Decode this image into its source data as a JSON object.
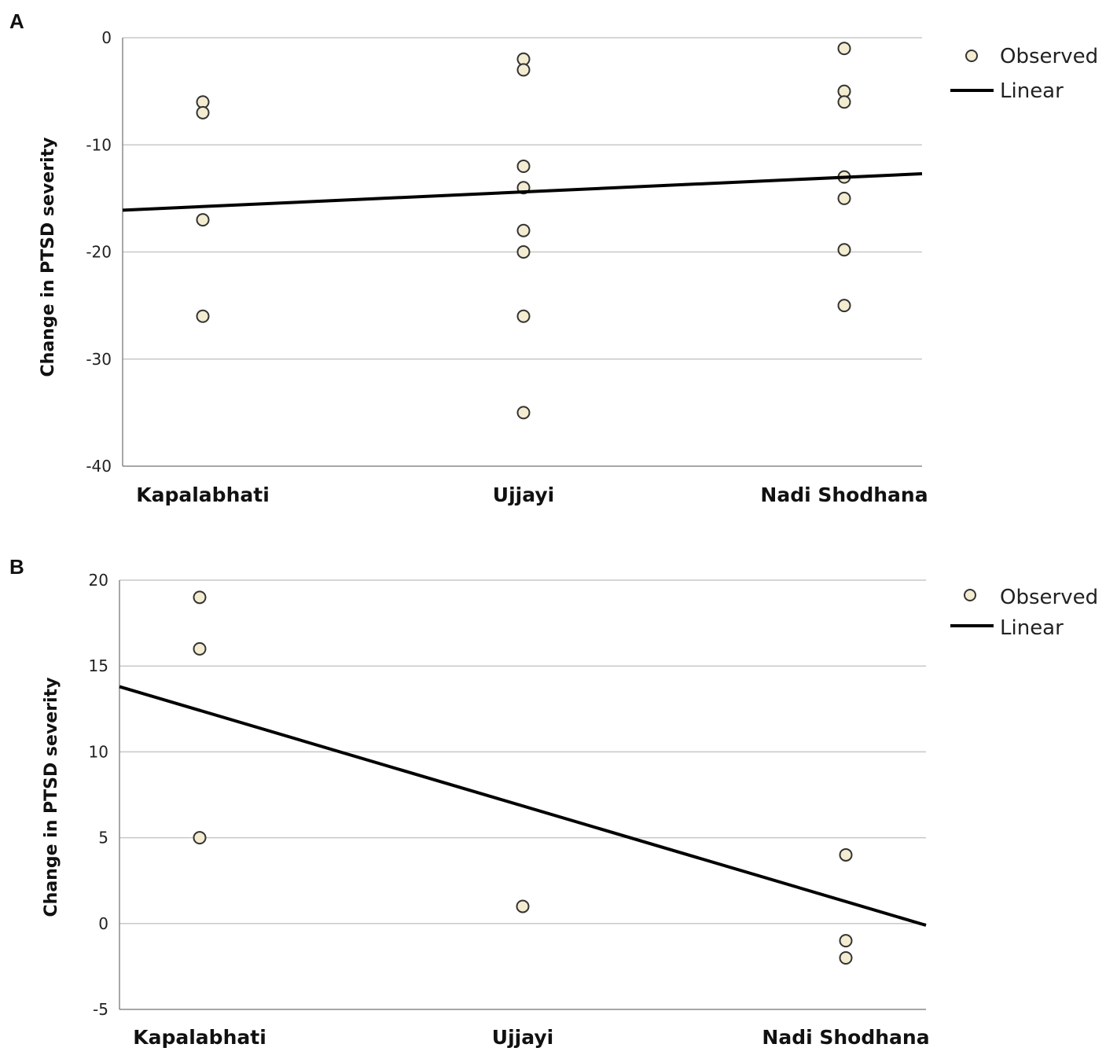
{
  "chart_data": [
    {
      "panel": "A",
      "type": "scatter",
      "title": "",
      "xlabel": "",
      "ylabel": "Change in PTSD severity",
      "categories": [
        "Kapalabhati",
        "Ujjayi",
        "Nadi Shodhana"
      ],
      "ylim": [
        -40,
        0
      ],
      "yticks": [
        0,
        -10,
        -20,
        -30,
        -40
      ],
      "grid": true,
      "legend": {
        "position": "top-right",
        "entries": [
          "Observed",
          "Linear"
        ]
      },
      "series": [
        {
          "name": "Observed",
          "type": "scatter",
          "category_values": [
            [
              -6,
              -7,
              -17,
              -26
            ],
            [
              -2,
              -3,
              -12,
              -14,
              -18,
              -20,
              -26,
              -35
            ],
            [
              -1,
              -5,
              -6,
              -13,
              -15,
              -19.8,
              -25
            ]
          ]
        },
        {
          "name": "Linear",
          "type": "line",
          "x": [
            0.5,
            3.5
          ],
          "y": [
            -16.1,
            -12.7
          ]
        }
      ]
    },
    {
      "panel": "B",
      "type": "scatter",
      "title": "",
      "xlabel": "",
      "ylabel": "Change in PTSD severity",
      "categories": [
        "Kapalabhati",
        "Ujjayi",
        "Nadi Shodhana"
      ],
      "ylim": [
        -5,
        20
      ],
      "yticks": [
        20,
        15,
        10,
        5,
        0,
        -5
      ],
      "grid": true,
      "legend": {
        "position": "top-right",
        "entries": [
          "Observed",
          "Linear"
        ]
      },
      "series": [
        {
          "name": "Observed",
          "type": "scatter",
          "category_values": [
            [
              19,
              16,
              5
            ],
            [
              1
            ],
            [
              4,
              -1,
              -2
            ]
          ]
        },
        {
          "name": "Linear",
          "type": "line",
          "x": [
            0.5,
            3.5
          ],
          "y": [
            13.8,
            -0.1
          ]
        }
      ]
    }
  ]
}
